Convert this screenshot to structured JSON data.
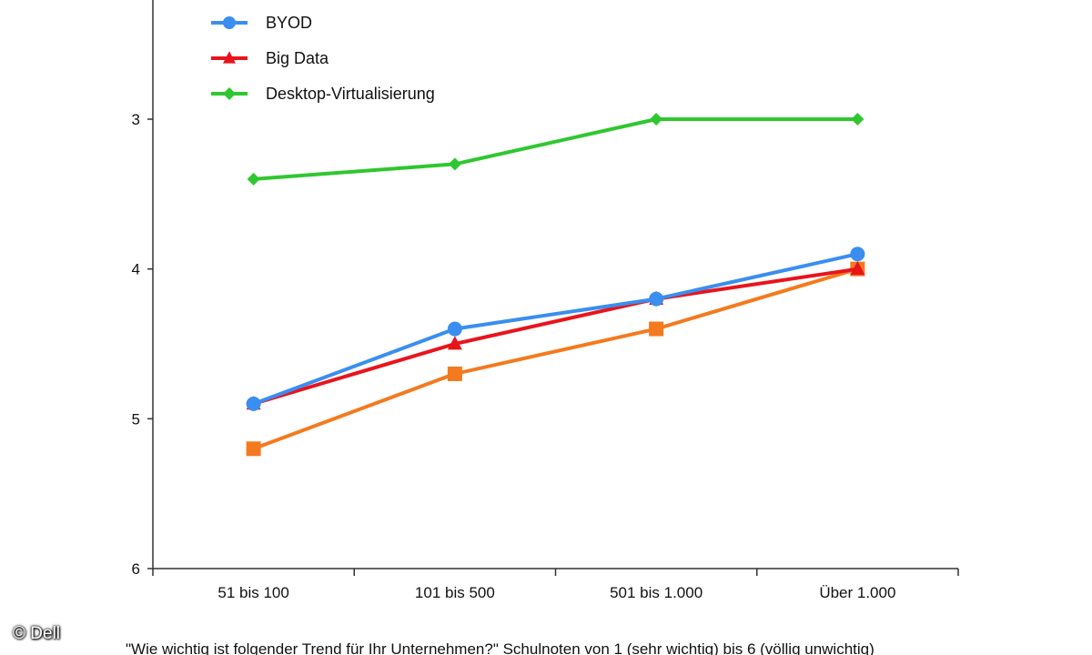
{
  "copyright": "© Dell",
  "caption": "\"Wie wichtig ist folgender Trend für Ihr Unternehmen?\" Schulnoten von 1 (sehr wichtig) bis 6 (völlig unwichtig)",
  "chart_data": {
    "type": "line",
    "categories": [
      "51 bis 100",
      "101 bis 500",
      "501 bis 1.000",
      "Über 1.000"
    ],
    "ylim": [
      2.2,
      6
    ],
    "yticks": [
      3,
      4,
      5,
      6
    ],
    "ytick_labels": [
      "3",
      "4",
      "5",
      "6"
    ],
    "y_axis_reversed": true,
    "grid": false,
    "legend_position": "top-left",
    "series": [
      {
        "name": "BYOD",
        "color": "#3a8ef0",
        "marker": "circle",
        "values": [
          4.9,
          4.4,
          4.2,
          3.9
        ],
        "in_legend": true
      },
      {
        "name": "Big Data",
        "color": "#e8141c",
        "marker": "triangle",
        "values": [
          4.9,
          4.5,
          4.2,
          4.0
        ],
        "in_legend": true
      },
      {
        "name": "Desktop-Virtualisierung",
        "color": "#2fc72f",
        "marker": "diamond",
        "values": [
          3.4,
          3.3,
          3.0,
          3.0
        ],
        "in_legend": true
      },
      {
        "name": "",
        "color": "#f47a1f",
        "marker": "square",
        "values": [
          5.2,
          4.7,
          4.4,
          4.0
        ],
        "in_legend": false
      }
    ]
  }
}
